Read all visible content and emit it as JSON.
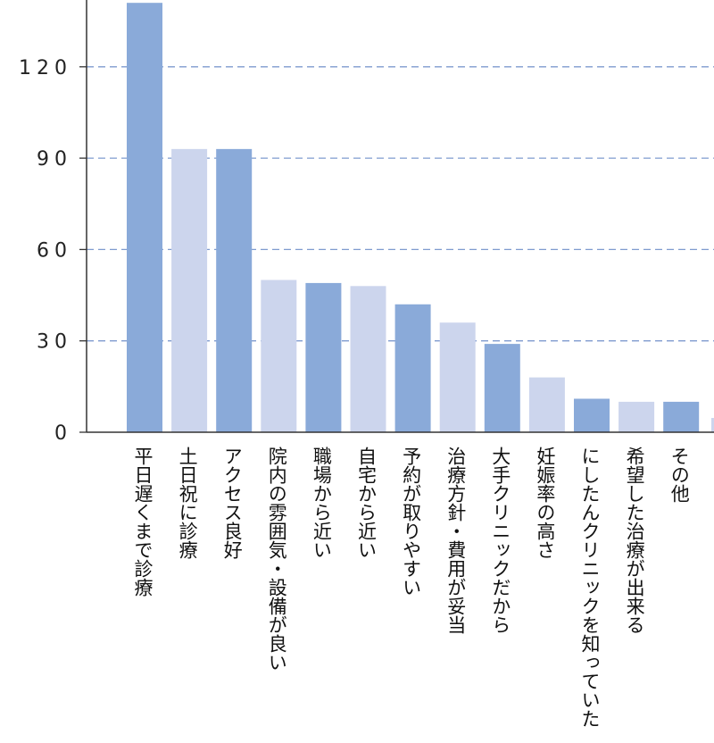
{
  "chart_data": {
    "type": "bar",
    "categories": [
      "平日遅くまで診療",
      "土日祝に診療",
      "アクセス良好",
      "院内の雰囲気・設備が良い",
      "職場から近い",
      "自宅から近い",
      "予約が取りやすい",
      "治療方針・費用が妥当",
      "大手クリニックだから",
      "妊娠率の高さ",
      "にしたんクリニックを知っていた",
      "希望した治療が出来る",
      "その他"
    ],
    "values": [
      141,
      93,
      93,
      50,
      49,
      48,
      42,
      36,
      29,
      18,
      11,
      10,
      10
    ],
    "ylim": [
      0,
      140
    ],
    "yticks": [
      0,
      30,
      60,
      90,
      120
    ],
    "ytick_labels": [
      "0",
      "30",
      "60",
      "90",
      "120"
    ],
    "grid": true,
    "colors": [
      "#8aaad9",
      "#ccd5ed"
    ]
  }
}
